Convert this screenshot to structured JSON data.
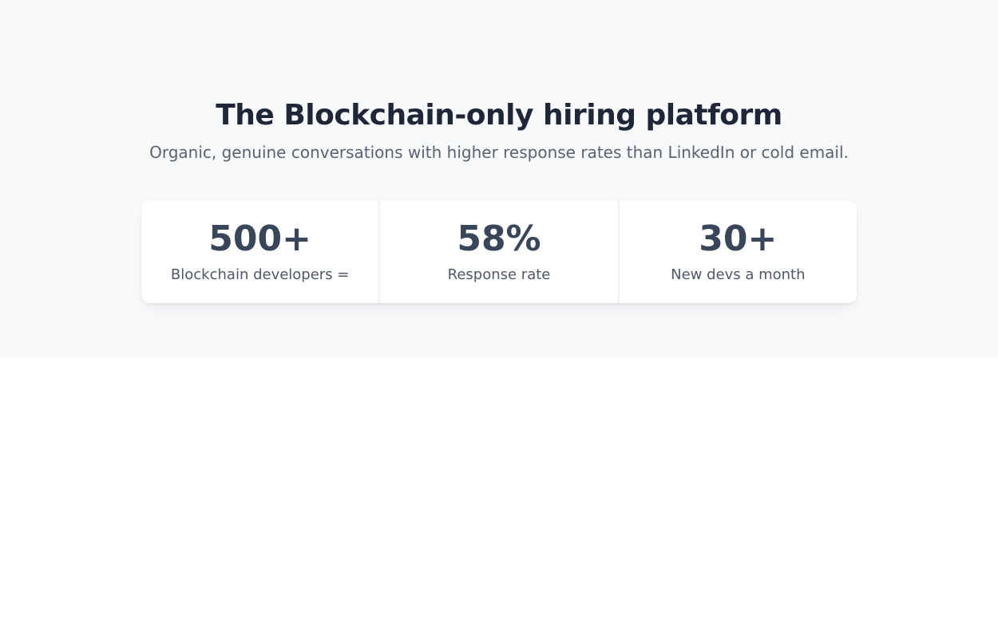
{
  "hero": {
    "title": "The Blockchain-only hiring platform",
    "subtitle": "Organic, genuine conversations with higher response rates than LinkedIn or cold email.",
    "title_color": "#1e2638",
    "subtitle_color": "#5a6271",
    "background_color": "#f8f9fb"
  },
  "stats": [
    {
      "value": "500+",
      "label": "Blockchain developers ="
    },
    {
      "value": "58%",
      "label": "Response rate"
    },
    {
      "value": "30+",
      "label": "New devs a month"
    }
  ],
  "colors": {
    "stat_value": "#394559",
    "stat_label": "#4f586a",
    "card_background": "#ffffff",
    "card_divider": "#eff1f5",
    "lower_background": "#ffffff"
  }
}
